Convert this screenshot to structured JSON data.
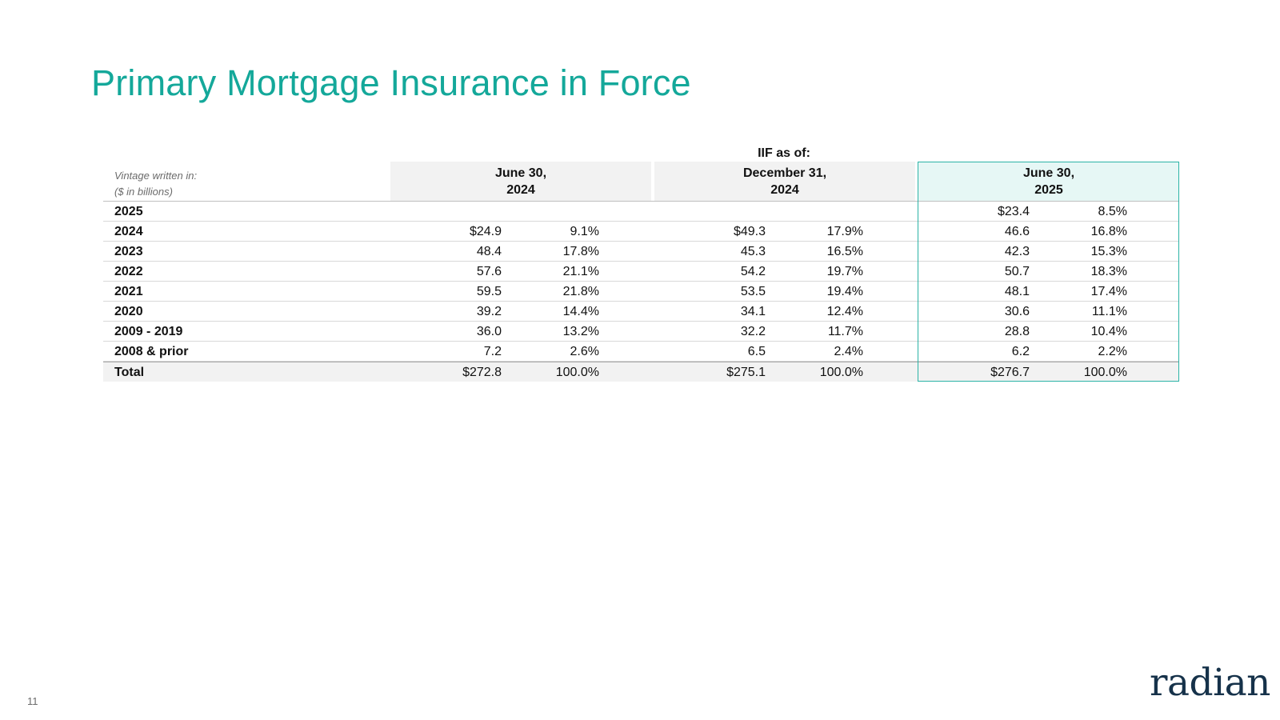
{
  "title": "Primary Mortgage Insurance in Force",
  "iif_label": "IIF as of:",
  "vintage_label": "Vintage written in:",
  "units_label": "($ in billions)",
  "columns": [
    {
      "line1": "June 30,",
      "line2": "2024"
    },
    {
      "line1": "December 31,",
      "line2": "2024"
    },
    {
      "line1": "June 30,",
      "line2": "2025"
    }
  ],
  "rows": [
    {
      "label": "2025",
      "c1a": "",
      "c1b": "",
      "c2a": "",
      "c2b": "",
      "c3a": "$23.4",
      "c3b": "8.5%"
    },
    {
      "label": "2024",
      "c1a": "$24.9",
      "c1b": "9.1%",
      "c2a": "$49.3",
      "c2b": "17.9%",
      "c3a": "46.6",
      "c3b": "16.8%"
    },
    {
      "label": "2023",
      "c1a": "48.4",
      "c1b": "17.8%",
      "c2a": "45.3",
      "c2b": "16.5%",
      "c3a": "42.3",
      "c3b": "15.3%"
    },
    {
      "label": "2022",
      "c1a": "57.6",
      "c1b": "21.1%",
      "c2a": "54.2",
      "c2b": "19.7%",
      "c3a": "50.7",
      "c3b": "18.3%"
    },
    {
      "label": "2021",
      "c1a": "59.5",
      "c1b": "21.8%",
      "c2a": "53.5",
      "c2b": "19.4%",
      "c3a": "48.1",
      "c3b": "17.4%"
    },
    {
      "label": "2020",
      "c1a": "39.2",
      "c1b": "14.4%",
      "c2a": "34.1",
      "c2b": "12.4%",
      "c3a": "30.6",
      "c3b": "11.1%"
    },
    {
      "label": "2009 - 2019",
      "c1a": "36.0",
      "c1b": "13.2%",
      "c2a": "32.2",
      "c2b": "11.7%",
      "c3a": "28.8",
      "c3b": "10.4%"
    },
    {
      "label": "2008 & prior",
      "c1a": "7.2",
      "c1b": "2.6%",
      "c2a": "6.5",
      "c2b": "2.4%",
      "c3a": "6.2",
      "c3b": "2.2%"
    },
    {
      "label": "Total",
      "c1a": "$272.8",
      "c1b": "100.0%",
      "c2a": "$275.1",
      "c2b": "100.0%",
      "c3a": "$276.7",
      "c3b": "100.0%"
    }
  ],
  "page_number": "11",
  "logo_text": "radian",
  "colors": {
    "title": "#14a89a",
    "highlight": "#2bb3a6",
    "logo": "#16324a"
  }
}
